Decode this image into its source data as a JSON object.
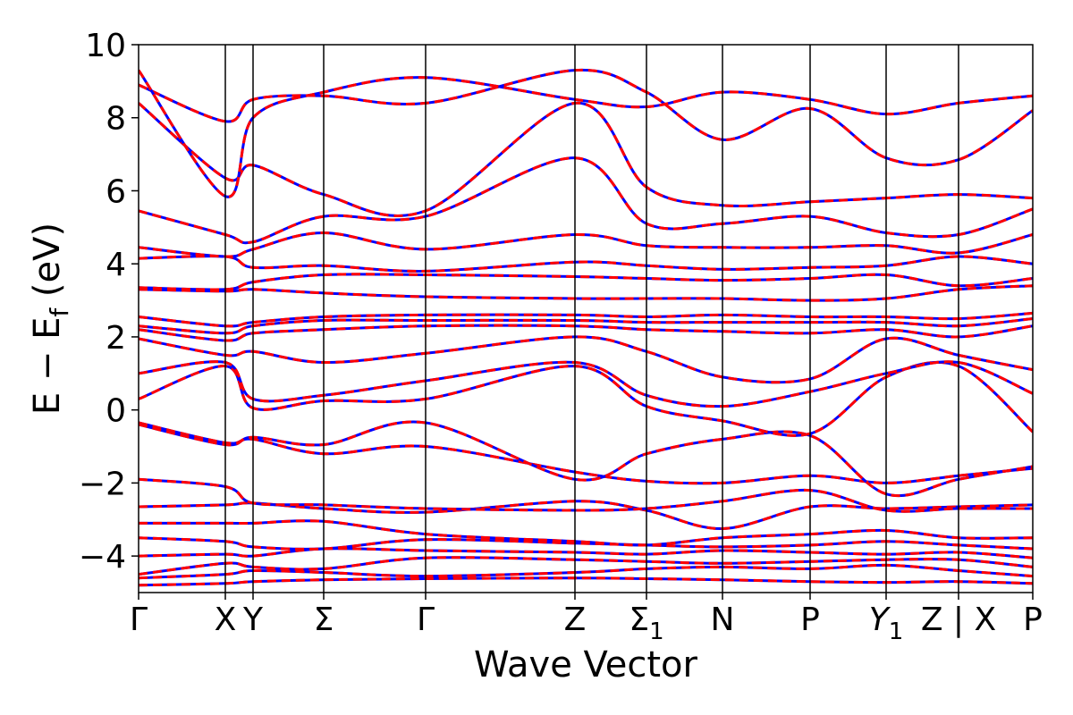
{
  "chart_data": {
    "type": "line",
    "title": "",
    "xlabel": "Wave Vector",
    "ylabel": "E − E_f (eV)",
    "ylabel_main": "E − E",
    "ylabel_sub": "f",
    "ylabel_unit": " (eV)",
    "ylim": [
      -5,
      10
    ],
    "y_ticks": [
      10,
      8,
      6,
      4,
      2,
      0,
      -2,
      -4
    ],
    "y_tick_labels": [
      "10",
      "8",
      "6",
      "4",
      "2",
      "0",
      "−2",
      "−4"
    ],
    "x_range": [
      0,
      1
    ],
    "grid": false,
    "legend": "none",
    "k_points": [
      {
        "label": "Γ",
        "pos": 0.0,
        "sub": ""
      },
      {
        "label": "X",
        "pos": 0.097,
        "sub": ""
      },
      {
        "label": "Y",
        "pos": 0.128,
        "sub": ""
      },
      {
        "label": "Σ",
        "pos": 0.207,
        "sub": ""
      },
      {
        "label": "Γ",
        "pos": 0.321,
        "sub": ""
      },
      {
        "label": "Z",
        "pos": 0.488,
        "sub": ""
      },
      {
        "label": "Σ",
        "pos": 0.568,
        "sub": "1"
      },
      {
        "label": "N",
        "pos": 0.653,
        "sub": ""
      },
      {
        "label": "P",
        "pos": 0.751,
        "sub": ""
      },
      {
        "label": "Y",
        "pos": 0.836,
        "sub": "1"
      },
      {
        "label": "Z | X",
        "pos": 0.917,
        "sub": ""
      },
      {
        "label": "P",
        "pos": 1.0,
        "sub": ""
      }
    ],
    "series_styles": [
      {
        "color": "#0000ff",
        "dash": "solid"
      },
      {
        "color": "#ff0000",
        "dash": "dashed"
      }
    ],
    "bands": [
      [
        -4.8,
        -4.75,
        -4.7,
        -4.65,
        -4.62,
        -4.6,
        -4.62,
        -4.65,
        -4.7,
        -4.72,
        -4.7,
        -4.75
      ],
      [
        -4.6,
        -4.5,
        -4.4,
        -4.45,
        -4.55,
        -4.45,
        -4.35,
        -4.3,
        -4.35,
        -4.25,
        -4.4,
        -4.55
      ],
      [
        -4.5,
        -4.2,
        -4.3,
        -4.35,
        -4.05,
        -4.1,
        -4.15,
        -4.2,
        -4.15,
        -4.1,
        -4.1,
        -4.3
      ],
      [
        -4.0,
        -3.95,
        -4.0,
        -3.8,
        -3.85,
        -3.9,
        -3.95,
        -3.85,
        -3.9,
        -3.95,
        -3.9,
        -4.05
      ],
      [
        -3.5,
        -3.6,
        -3.75,
        -3.8,
        -3.55,
        -3.65,
        -3.7,
        -3.75,
        -3.7,
        -3.6,
        -3.7,
        -3.8
      ],
      [
        -3.1,
        -3.1,
        -3.1,
        -3.05,
        -3.4,
        -3.6,
        -3.7,
        -3.5,
        -3.4,
        -3.3,
        -3.5,
        -3.5
      ],
      [
        -2.65,
        -2.6,
        -2.55,
        -2.7,
        -2.8,
        -2.5,
        -2.75,
        -3.25,
        -2.65,
        -2.7,
        -2.65,
        -2.6
      ],
      [
        -1.9,
        -2.1,
        -2.55,
        -2.6,
        -2.7,
        -2.75,
        -2.7,
        -2.5,
        -2.2,
        -2.75,
        -2.7,
        -2.7
      ],
      [
        -0.35,
        -0.9,
        -0.8,
        -1.2,
        -1.0,
        -1.7,
        -1.95,
        -2.0,
        -1.8,
        -2.0,
        -1.8,
        -1.6
      ],
      [
        -0.4,
        -0.95,
        -0.75,
        -0.95,
        -0.35,
        -1.9,
        -1.2,
        -0.8,
        -0.7,
        -2.3,
        -1.9,
        -1.55
      ],
      [
        0.3,
        1.2,
        0.05,
        0.25,
        0.3,
        1.2,
        0.1,
        -0.3,
        -0.65,
        0.9,
        1.2,
        -0.6
      ],
      [
        1.0,
        1.3,
        0.3,
        0.4,
        0.8,
        1.3,
        0.4,
        0.1,
        0.5,
        1.0,
        1.3,
        0.45
      ],
      [
        1.95,
        1.5,
        1.6,
        1.3,
        1.55,
        2.0,
        1.6,
        0.9,
        0.85,
        1.95,
        1.5,
        1.1
      ],
      [
        2.2,
        1.9,
        2.1,
        2.2,
        2.3,
        2.3,
        2.2,
        2.15,
        2.1,
        2.2,
        2.0,
        2.3
      ],
      [
        2.3,
        2.1,
        2.3,
        2.45,
        2.45,
        2.45,
        2.4,
        2.4,
        2.4,
        2.4,
        2.3,
        2.5
      ],
      [
        2.55,
        2.3,
        2.4,
        2.55,
        2.6,
        2.6,
        2.55,
        2.6,
        2.55,
        2.55,
        2.5,
        2.65
      ],
      [
        3.3,
        3.25,
        3.3,
        3.2,
        3.1,
        3.05,
        3.05,
        3.05,
        3.0,
        3.05,
        3.3,
        3.4
      ],
      [
        3.35,
        3.3,
        3.5,
        3.7,
        3.7,
        3.65,
        3.6,
        3.55,
        3.6,
        3.7,
        3.4,
        3.6
      ],
      [
        4.15,
        4.2,
        3.9,
        3.95,
        3.8,
        4.05,
        3.95,
        3.85,
        3.9,
        3.95,
        4.2,
        4.0
      ],
      [
        4.45,
        4.2,
        4.4,
        4.85,
        4.4,
        4.8,
        4.5,
        4.45,
        4.45,
        4.5,
        4.3,
        4.8
      ],
      [
        5.45,
        4.8,
        4.6,
        5.3,
        5.3,
        6.9,
        5.1,
        5.1,
        5.3,
        4.85,
        4.8,
        5.5
      ],
      [
        8.4,
        6.35,
        6.7,
        5.9,
        5.45,
        8.4,
        6.1,
        5.6,
        5.7,
        5.8,
        5.9,
        5.8
      ],
      [
        8.9,
        7.9,
        8.5,
        8.6,
        8.4,
        9.3,
        8.7,
        7.4,
        8.25,
        6.9,
        6.85,
        8.2
      ],
      [
        9.3,
        5.85,
        8.0,
        8.7,
        9.1,
        8.5,
        8.3,
        8.7,
        8.5,
        8.1,
        8.4,
        8.6
      ]
    ]
  }
}
